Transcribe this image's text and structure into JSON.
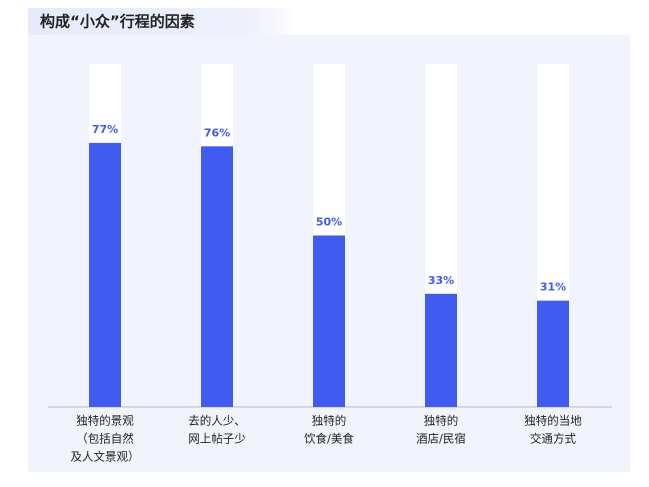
{
  "chart_data": {
    "type": "bar",
    "title": "构成“小众”行程的因素",
    "categories": [
      [
        "独特的景观",
        "（包括自然",
        "及人文景观）"
      ],
      [
        "去的人少、",
        "网上帖子少"
      ],
      [
        "独特的",
        "饮食/美食"
      ],
      [
        "独特的",
        "酒店/民宿"
      ],
      [
        "独特的当地",
        "交通方式"
      ]
    ],
    "values": [
      77,
      76,
      50,
      33,
      31
    ],
    "value_labels": [
      "77%",
      "76%",
      "50%",
      "33%",
      "31%"
    ],
    "color": "#3f5bf0",
    "ylim": [
      0,
      100
    ]
  }
}
